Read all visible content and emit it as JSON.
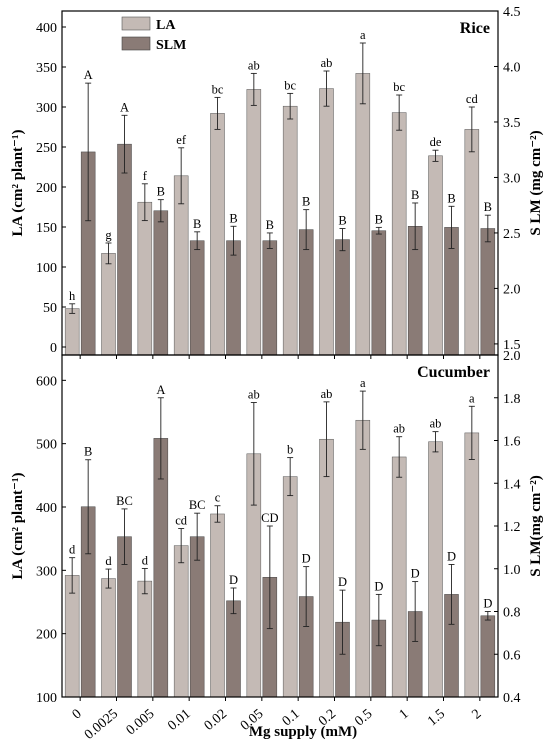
{
  "colors": {
    "LA": "#c4bab5",
    "SLM": "#8a7b76",
    "axis": "#000000"
  },
  "chart_data": [
    {
      "type": "bar",
      "title": "Rice",
      "categories": [
        "0",
        "0.0025",
        "0.005",
        "0.01",
        "0.02",
        "0.05",
        "0.1",
        "0.2",
        "0.5",
        "1",
        "1.5",
        "2"
      ],
      "xlabel": "",
      "ylabel": "LA (cm² plant⁻¹)",
      "ylabel_right": "S LM (mg cm⁻²)",
      "ylim": [
        -10,
        420
      ],
      "ylim_right": [
        1.4,
        4.5
      ],
      "yticks": [
        0,
        50,
        100,
        150,
        200,
        250,
        300,
        350,
        400
      ],
      "yticks_right": [
        1.5,
        2.0,
        2.5,
        3.0,
        3.5,
        4.0,
        4.5
      ],
      "legend": "top-left",
      "series": [
        {
          "name": "LA",
          "axis": "left",
          "values": [
            48,
            117,
            181,
            214,
            292,
            322,
            301,
            323,
            342,
            293,
            239,
            272
          ],
          "errors": [
            6,
            13,
            23,
            35,
            20,
            20,
            16,
            22,
            38,
            22,
            7,
            28
          ],
          "labels": [
            "h",
            "g",
            "f",
            "ef",
            "bc",
            "ab",
            "bc",
            "ab",
            "a",
            "bc",
            "de",
            "cd"
          ]
        },
        {
          "name": "SLM",
          "axis": "right",
          "values": [
            3.23,
            3.3,
            2.7,
            2.43,
            2.43,
            2.43,
            2.53,
            2.44,
            2.52,
            2.56,
            2.55,
            2.54
          ],
          "errors": [
            0.62,
            0.26,
            0.1,
            0.08,
            0.13,
            0.07,
            0.18,
            0.1,
            0.03,
            0.21,
            0.19,
            0.12
          ],
          "labels": [
            "A",
            "A",
            "B",
            "B",
            "B",
            "B",
            "B",
            "B",
            "B",
            "B",
            "B",
            "B"
          ]
        }
      ]
    },
    {
      "type": "bar",
      "title": "Cucumber",
      "categories": [
        "0",
        "0.0025",
        "0.005",
        "0.01",
        "0.02",
        "0.05",
        "0.1",
        "0.2",
        "0.5",
        "1",
        "1.5",
        "2"
      ],
      "xlabel": "Mg  supply (mM)",
      "ylabel": "LA (cm² plant⁻¹)",
      "ylabel_right": "S LM(mg cm⁻²)",
      "ylim": [
        100,
        640
      ],
      "ylim_right": [
        0.4,
        2.0
      ],
      "yticks": [
        100,
        200,
        300,
        400,
        500,
        600
      ],
      "yticks_right": [
        0.4,
        0.6,
        0.8,
        1.0,
        1.2,
        1.4,
        1.6,
        1.8,
        2.0
      ],
      "series": [
        {
          "name": "LA",
          "axis": "left",
          "values": [
            292,
            287,
            283,
            339,
            389,
            484,
            448,
            507,
            537,
            479,
            503,
            517
          ],
          "errors": [
            28,
            15,
            20,
            27,
            13,
            81,
            30,
            59,
            46,
            32,
            16,
            42
          ],
          "labels": [
            "d",
            "d",
            "d",
            "cd",
            "c",
            "ab",
            "b",
            "ab",
            "a",
            "ab",
            "ab",
            "a"
          ]
        },
        {
          "name": "SLM",
          "axis": "right",
          "values": [
            1.29,
            1.15,
            1.61,
            1.15,
            0.85,
            0.96,
            0.87,
            0.75,
            0.76,
            0.8,
            0.88,
            0.78
          ],
          "errors": [
            0.22,
            0.13,
            0.19,
            0.11,
            0.06,
            0.24,
            0.14,
            0.15,
            0.12,
            0.14,
            0.14,
            0.02
          ],
          "labels": [
            "B",
            "BC",
            "A",
            "BC",
            "D",
            "CD",
            "D",
            "D",
            "D",
            "D",
            "D",
            "D"
          ]
        }
      ]
    }
  ]
}
